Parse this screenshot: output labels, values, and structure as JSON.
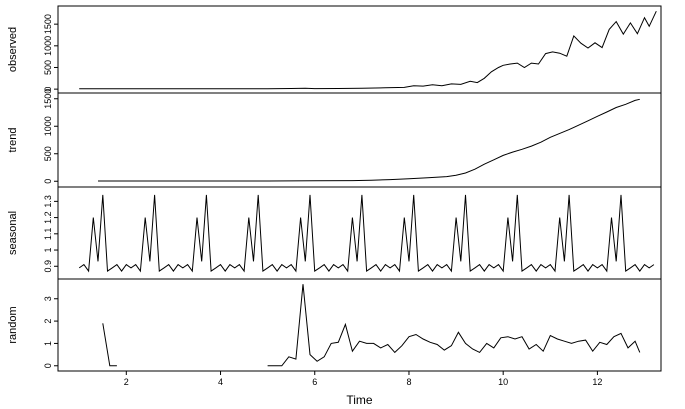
{
  "chart_data": {
    "type": "line",
    "xlabel": "Time",
    "xlim": [
      0.55,
      13.35
    ],
    "x_ticks": [
      2,
      4,
      6,
      8,
      10,
      12
    ],
    "grid": false,
    "panels": [
      {
        "name": "observed",
        "ylabel": "observed",
        "ylim": [
          -20,
          1850
        ],
        "y_ticks": [
          0,
          500,
          1000,
          1500
        ],
        "x": [
          1.0,
          2.0,
          3.0,
          4.0,
          5.0,
          5.5,
          5.8,
          6.0,
          6.5,
          7.0,
          7.5,
          7.9,
          8.1,
          8.3,
          8.5,
          8.7,
          8.9,
          9.1,
          9.3,
          9.45,
          9.6,
          9.75,
          9.9,
          10.0,
          10.15,
          10.3,
          10.45,
          10.6,
          10.75,
          10.9,
          11.05,
          11.2,
          11.35,
          11.5,
          11.65,
          11.8,
          11.95,
          12.1,
          12.25,
          12.4,
          12.55,
          12.7,
          12.85,
          13.0,
          13.1,
          13.25
        ],
        "y": [
          10,
          10,
          10,
          10,
          10,
          15,
          20,
          12,
          15,
          20,
          30,
          40,
          80,
          70,
          100,
          80,
          120,
          110,
          180,
          150,
          250,
          400,
          500,
          550,
          580,
          600,
          500,
          600,
          580,
          820,
          860,
          830,
          760,
          1230,
          1060,
          950,
          1070,
          960,
          1380,
          1560,
          1270,
          1530,
          1280,
          1650,
          1450,
          1800
        ]
      },
      {
        "name": "trend",
        "ylabel": "trend",
        "ylim": [
          -50,
          1550
        ],
        "y_ticks": [
          0,
          500,
          1000,
          1500
        ],
        "x": [
          1.4,
          2.0,
          3.0,
          4.0,
          5.0,
          6.0,
          6.8,
          7.2,
          7.6,
          8.0,
          8.4,
          8.8,
          9.0,
          9.2,
          9.4,
          9.6,
          9.8,
          10.0,
          10.2,
          10.4,
          10.6,
          10.8,
          11.0,
          11.2,
          11.4,
          11.6,
          11.8,
          12.0,
          12.2,
          12.4,
          12.6,
          12.8,
          12.9
        ],
        "y": [
          5,
          5,
          5,
          5,
          5,
          8,
          12,
          20,
          30,
          45,
          65,
          85,
          110,
          150,
          220,
          310,
          390,
          470,
          530,
          580,
          640,
          710,
          800,
          870,
          940,
          1020,
          1100,
          1180,
          1260,
          1340,
          1400,
          1470,
          1490
        ]
      },
      {
        "name": "seasonal",
        "ylabel": "seasonal",
        "ylim": [
          0.84,
          1.37
        ],
        "y_ticks": [
          0.9,
          1.0,
          1.1,
          1.2,
          1.3
        ],
        "pattern": [
          0.89,
          0.91,
          0.87,
          1.2,
          0.93,
          1.34,
          0.87,
          0.89,
          0.91,
          0.87,
          0.91
        ],
        "start": 1.0,
        "step": 0.1,
        "cycles": 12
      },
      {
        "name": "random",
        "ylabel": "random",
        "ylim": [
          -0.1,
          3.75
        ],
        "y_ticks": [
          0,
          1,
          2,
          3
        ],
        "segments": [
          {
            "x": [
              1.5,
              1.65,
              1.8
            ],
            "y": [
              1.9,
              0.0,
              0.0
            ]
          },
          {
            "x": [
              5.0,
              5.15,
              5.3,
              5.45,
              5.6,
              5.75,
              5.9,
              6.05,
              6.2,
              6.35,
              6.5,
              6.65,
              6.8,
              6.95,
              7.1,
              7.25,
              7.4,
              7.55,
              7.7,
              7.85,
              8.0,
              8.15,
              8.3,
              8.45,
              8.6,
              8.75,
              8.9,
              9.05,
              9.2,
              9.35,
              9.5,
              9.65,
              9.8,
              9.95,
              10.1,
              10.25,
              10.4,
              10.55,
              10.7,
              10.85,
              11.0,
              11.15,
              11.3,
              11.45,
              11.6,
              11.75,
              11.9,
              12.05,
              12.2,
              12.35,
              12.5,
              12.65,
              12.8,
              12.9
            ],
            "y": [
              0.0,
              0.0,
              0.0,
              0.4,
              0.3,
              3.65,
              0.5,
              0.2,
              0.4,
              1.0,
              1.05,
              1.85,
              0.65,
              1.1,
              1.0,
              1.0,
              0.8,
              0.95,
              0.6,
              0.9,
              1.3,
              1.4,
              1.2,
              1.05,
              0.95,
              0.7,
              0.9,
              1.5,
              1.0,
              0.75,
              0.6,
              1.0,
              0.8,
              1.25,
              1.3,
              1.2,
              1.3,
              0.75,
              0.95,
              0.65,
              1.35,
              1.2,
              1.1,
              1.0,
              1.1,
              1.15,
              0.65,
              1.05,
              0.95,
              1.3,
              1.45,
              0.8,
              1.1,
              0.6
            ]
          }
        ]
      }
    ]
  }
}
